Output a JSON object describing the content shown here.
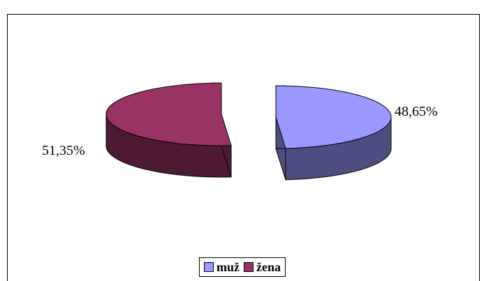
{
  "chart_data": {
    "type": "pie",
    "title": "",
    "categories": [
      "muž",
      "žena"
    ],
    "values": [
      48.65,
      51.35
    ],
    "data_labels": [
      "48,65%",
      "51,35%"
    ],
    "colors": [
      "#9999ff",
      "#993366"
    ],
    "side_colors": [
      "#4d4d80",
      "#4d1a33"
    ],
    "legend_position": "bottom"
  },
  "legend": {
    "items": [
      {
        "label": "muž",
        "color": "#9999ff"
      },
      {
        "label": "žena",
        "color": "#993366"
      }
    ]
  }
}
